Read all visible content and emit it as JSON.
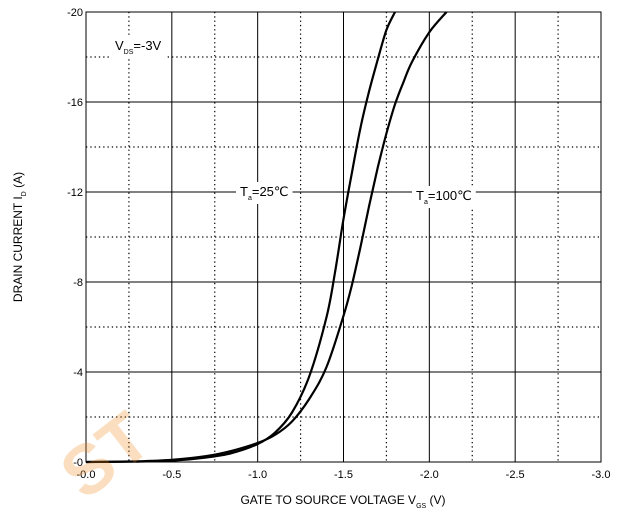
{
  "chart_data": {
    "type": "line",
    "x_axis": {
      "label_main": "GATE TO SOURCE VOLTAGE   V",
      "label_sub": "GS",
      "label_unit": "(V)",
      "range": [
        0,
        -3
      ],
      "ticks": [
        0,
        -0.5,
        -1.0,
        -1.5,
        -2.0,
        -2.5,
        -3.0
      ],
      "tick_labels": [
        "-0.0",
        "-0.5",
        "-1.0",
        "-1.5",
        "-2.0",
        "-2.5",
        "-3.0"
      ],
      "minor_ticks": [
        -0.25,
        -0.75,
        -1.25,
        -1.75,
        -2.25,
        -2.75
      ]
    },
    "y_axis": {
      "label_main": "DRAIN CURRENT   I",
      "label_sub": "D",
      "label_unit": "(A)",
      "range": [
        0,
        -20
      ],
      "ticks": [
        0,
        -4,
        -8,
        -12,
        -16,
        -20
      ],
      "tick_labels": [
        "-0",
        "-4",
        "-8",
        "-12",
        "-16",
        "-20"
      ],
      "minor_ticks": [
        -2,
        -6,
        -10,
        -14,
        -18
      ]
    },
    "grid": {
      "major": "solid",
      "minor": "dotted"
    },
    "annotations": [
      {
        "id": "vds",
        "main": "V",
        "sub": "DS",
        "rest": "=-3V"
      },
      {
        "id": "t25",
        "main": "T",
        "sub": "a",
        "rest": "=25℃"
      },
      {
        "id": "t100",
        "main": "T",
        "sub": "a",
        "rest": "=100℃"
      }
    ],
    "series": [
      {
        "id": "ta25",
        "points": [
          [
            0,
            0
          ],
          [
            -0.3,
            -0.02
          ],
          [
            -0.5,
            -0.06
          ],
          [
            -0.7,
            -0.2
          ],
          [
            -0.85,
            -0.4
          ],
          [
            -1.0,
            -0.8
          ],
          [
            -1.1,
            -1.3
          ],
          [
            -1.2,
            -2.2
          ],
          [
            -1.3,
            -3.8
          ],
          [
            -1.4,
            -6.4
          ],
          [
            -1.45,
            -8.4
          ],
          [
            -1.5,
            -10.8
          ],
          [
            -1.55,
            -12.9
          ],
          [
            -1.6,
            -14.9
          ],
          [
            -1.65,
            -16.5
          ],
          [
            -1.7,
            -17.9
          ],
          [
            -1.75,
            -19.2
          ],
          [
            -1.8,
            -20
          ]
        ]
      },
      {
        "id": "ta100",
        "points": [
          [
            0,
            0
          ],
          [
            -0.3,
            -0.03
          ],
          [
            -0.5,
            -0.1
          ],
          [
            -0.7,
            -0.26
          ],
          [
            -0.85,
            -0.5
          ],
          [
            -1.0,
            -0.85
          ],
          [
            -1.1,
            -1.2
          ],
          [
            -1.2,
            -1.8
          ],
          [
            -1.3,
            -2.8
          ],
          [
            -1.4,
            -4.2
          ],
          [
            -1.5,
            -6.5
          ],
          [
            -1.55,
            -7.9
          ],
          [
            -1.6,
            -9.6
          ],
          [
            -1.65,
            -11.4
          ],
          [
            -1.7,
            -13.1
          ],
          [
            -1.75,
            -14.6
          ],
          [
            -1.8,
            -15.9
          ],
          [
            -1.85,
            -16.9
          ],
          [
            -1.9,
            -17.8
          ],
          [
            -2.0,
            -19.1
          ],
          [
            -2.1,
            -20
          ]
        ]
      }
    ]
  }
}
